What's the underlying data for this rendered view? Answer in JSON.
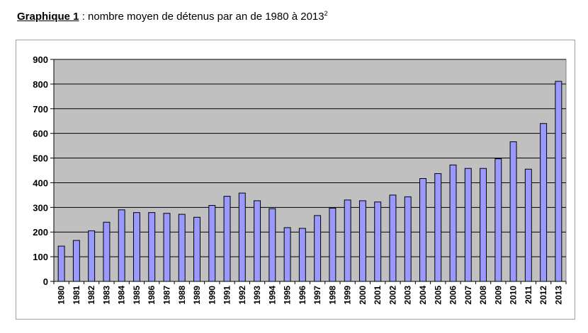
{
  "caption": {
    "label": "Graphique 1",
    "text": " : nombre moyen de détenus par an de 1980 à 2013",
    "footnote": "2"
  },
  "chart_data": {
    "type": "bar",
    "title": "",
    "xlabel": "",
    "ylabel": "",
    "ylim": [
      0,
      900
    ],
    "yticks": [
      0,
      100,
      200,
      300,
      400,
      500,
      600,
      700,
      800,
      900
    ],
    "grid": true,
    "legend": "none",
    "categories": [
      "1980",
      "1981",
      "1982",
      "1983",
      "1984",
      "1985",
      "1986",
      "1987",
      "1988",
      "1989",
      "1990",
      "1991",
      "1992",
      "1993",
      "1994",
      "1995",
      "1996",
      "1997",
      "1998",
      "1999",
      "2000",
      "2001",
      "2002",
      "2003",
      "2004",
      "2005",
      "2006",
      "2007",
      "2008",
      "2009",
      "2010",
      "2011",
      "2012",
      "2013"
    ],
    "values": [
      143,
      166,
      205,
      240,
      290,
      279,
      279,
      276,
      272,
      260,
      308,
      345,
      358,
      327,
      295,
      218,
      215,
      267,
      297,
      330,
      327,
      322,
      350,
      343,
      417,
      437,
      472,
      458,
      458,
      497,
      566,
      455,
      640,
      811
    ],
    "colors": {
      "bar": "#9999ff",
      "bar_stroke": "#000000",
      "plot_bg": "#c0c0c0",
      "grid": "#000000"
    }
  }
}
